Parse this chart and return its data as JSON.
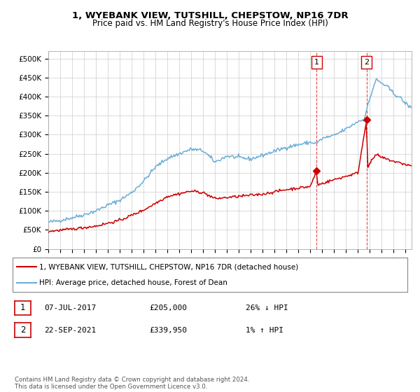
{
  "title": "1, WYEBANK VIEW, TUTSHILL, CHEPSTOW, NP16 7DR",
  "subtitle": "Price paid vs. HM Land Registry's House Price Index (HPI)",
  "ylabel_ticks": [
    "£0",
    "£50K",
    "£100K",
    "£150K",
    "£200K",
    "£250K",
    "£300K",
    "£350K",
    "£400K",
    "£450K",
    "£500K"
  ],
  "ytick_values": [
    0,
    50000,
    100000,
    150000,
    200000,
    250000,
    300000,
    350000,
    400000,
    450000,
    500000
  ],
  "ylim": [
    0,
    520000
  ],
  "xlim_start": 1995.0,
  "xlim_end": 2025.5,
  "hpi_color": "#6baed6",
  "price_color": "#cc0000",
  "legend_label_price": "1, WYEBANK VIEW, TUTSHILL, CHEPSTOW, NP16 7DR (detached house)",
  "legend_label_hpi": "HPI: Average price, detached house, Forest of Dean",
  "sale1_label": "1",
  "sale1_date": "07-JUL-2017",
  "sale1_price": "£205,000",
  "sale1_pct": "26% ↓ HPI",
  "sale1_year": 2017.52,
  "sale1_value": 205000,
  "sale2_label": "2",
  "sale2_date": "22-SEP-2021",
  "sale2_price": "£339,950",
  "sale2_pct": "1% ↑ HPI",
  "sale2_year": 2021.72,
  "sale2_value": 339950,
  "footer": "Contains HM Land Registry data © Crown copyright and database right 2024.\nThis data is licensed under the Open Government Licence v3.0.",
  "background_color": "#ffffff",
  "grid_color": "#cccccc",
  "vline_color": "#cc0000"
}
